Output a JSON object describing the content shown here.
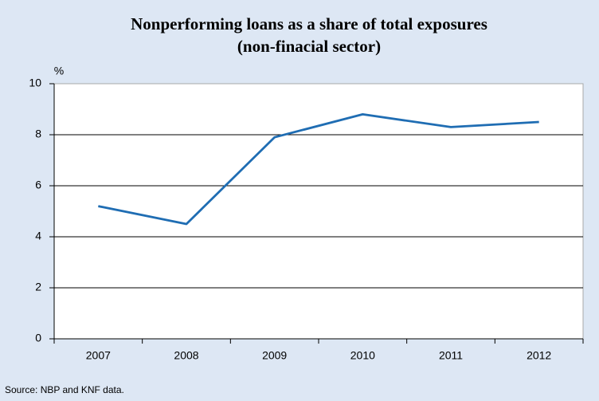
{
  "chart_data": {
    "type": "line",
    "title": [
      "Nonperforming loans as a share of total exposures",
      "(non-finacial sector)"
    ],
    "y_label": "%",
    "source": "Source: NBP and KNF data.",
    "categories": [
      "2007",
      "2008",
      "2009",
      "2010",
      "2011",
      "2012"
    ],
    "series": [
      {
        "name": "Nonperforming loans",
        "color": "#1f6db3",
        "values": [
          5.2,
          4.5,
          7.9,
          8.8,
          8.3,
          8.5
        ]
      }
    ],
    "ylim": [
      0,
      10
    ],
    "yticks": [
      0,
      2,
      4,
      6,
      8,
      10
    ],
    "grid": true,
    "legend": false
  }
}
